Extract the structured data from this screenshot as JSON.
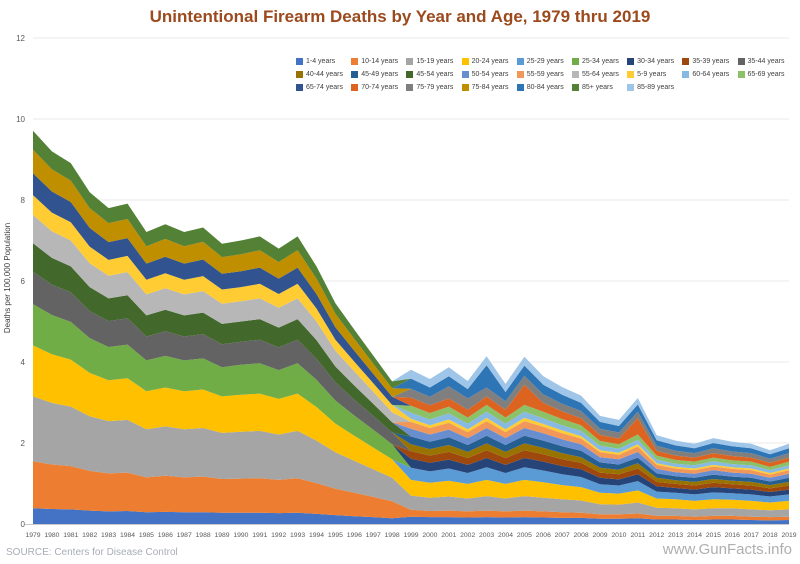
{
  "source": "SOURCE: Centers for Disease Control",
  "watermark": "www.GunFacts.info",
  "chart_data": {
    "type": "area",
    "stacked": true,
    "title": "Unintentional Firearm Deaths by Year and Age, 1979 thru 2019",
    "xlabel": "",
    "ylabel": "Deaths per 100,000 Population",
    "ylim": [
      0,
      12
    ],
    "yticks": [
      0,
      2,
      4,
      6,
      8,
      10,
      12
    ],
    "grid": true,
    "legend_position": "top-right",
    "title_color": "#9C4A1D",
    "x": [
      1979,
      1980,
      1981,
      1982,
      1983,
      1984,
      1985,
      1986,
      1987,
      1988,
      1989,
      1990,
      1991,
      1992,
      1993,
      1994,
      1995,
      1996,
      1997,
      1998,
      1999,
      2000,
      2001,
      2002,
      2003,
      2004,
      2005,
      2006,
      2007,
      2008,
      2009,
      2010,
      2011,
      2012,
      2013,
      2014,
      2015,
      2016,
      2017,
      2018,
      2019
    ],
    "series": [
      {
        "name": "1-4 years",
        "color": "#4472C4",
        "values": [
          0.39,
          0.37,
          0.36,
          0.33,
          0.31,
          0.32,
          0.29,
          0.3,
          0.29,
          0.29,
          0.28,
          0.28,
          0.28,
          0.27,
          0.28,
          0.25,
          0.22,
          0.19,
          0.17,
          0.14,
          0.18,
          0.17,
          0.17,
          0.16,
          0.17,
          0.16,
          0.17,
          0.16,
          0.15,
          0.15,
          0.13,
          0.13,
          0.14,
          0.11,
          0.11,
          0.1,
          0.11,
          0.11,
          0.1,
          0.09,
          0.1
        ]
      },
      {
        "name": "10-14 years",
        "color": "#ED7D31",
        "values": [
          1.16,
          1.1,
          1.07,
          0.98,
          0.94,
          0.95,
          0.86,
          0.89,
          0.86,
          0.88,
          0.83,
          0.84,
          0.85,
          0.82,
          0.85,
          0.76,
          0.65,
          0.58,
          0.5,
          0.42,
          0.17,
          0.15,
          0.16,
          0.15,
          0.16,
          0.15,
          0.16,
          0.15,
          0.14,
          0.13,
          0.11,
          0.11,
          0.12,
          0.09,
          0.09,
          0.08,
          0.09,
          0.09,
          0.08,
          0.08,
          0.08
        ]
      },
      {
        "name": "15-19 years",
        "color": "#A5A5A5",
        "values": [
          1.6,
          1.52,
          1.47,
          1.35,
          1.29,
          1.3,
          1.19,
          1.22,
          1.19,
          1.2,
          1.14,
          1.16,
          1.17,
          1.12,
          1.17,
          1.05,
          0.9,
          0.79,
          0.68,
          0.58,
          0.35,
          0.33,
          0.35,
          0.32,
          0.36,
          0.32,
          0.36,
          0.34,
          0.32,
          0.3,
          0.25,
          0.24,
          0.27,
          0.2,
          0.19,
          0.18,
          0.19,
          0.19,
          0.18,
          0.17,
          0.18
        ]
      },
      {
        "name": "20-24 years",
        "color": "#FFC000",
        "values": [
          1.26,
          1.2,
          1.16,
          1.07,
          1.01,
          1.03,
          0.94,
          0.96,
          0.94,
          0.95,
          0.9,
          0.91,
          0.92,
          0.88,
          0.92,
          0.83,
          0.71,
          0.62,
          0.54,
          0.46,
          0.39,
          0.37,
          0.39,
          0.36,
          0.4,
          0.36,
          0.4,
          0.38,
          0.35,
          0.33,
          0.28,
          0.27,
          0.3,
          0.23,
          0.22,
          0.21,
          0.22,
          0.21,
          0.21,
          0.19,
          0.21
        ]
      },
      {
        "name": "25-29 years",
        "color": "#5B9BD5",
        "values": [
          0,
          0,
          0,
          0,
          0,
          0,
          0,
          0,
          0,
          0,
          0,
          0,
          0,
          0,
          0,
          0,
          0,
          0,
          0,
          0,
          0.3,
          0.28,
          0.3,
          0.27,
          0.31,
          0.27,
          0.31,
          0.29,
          0.27,
          0.25,
          0.21,
          0.2,
          0.23,
          0.17,
          0.16,
          0.16,
          0.17,
          0.16,
          0.16,
          0.15,
          0.16
        ]
      },
      {
        "name": "25-34 years",
        "color": "#70AD47",
        "values": [
          1.02,
          0.97,
          0.93,
          0.86,
          0.82,
          0.83,
          0.76,
          0.78,
          0.76,
          0.77,
          0.72,
          0.74,
          0.75,
          0.71,
          0.75,
          0.67,
          0.57,
          0.5,
          0.44,
          0.37,
          0,
          0,
          0,
          0,
          0,
          0,
          0,
          0,
          0,
          0,
          0,
          0,
          0,
          0,
          0,
          0,
          0,
          0,
          0,
          0,
          0
        ]
      },
      {
        "name": "30-34 years",
        "color": "#264478",
        "values": [
          0,
          0,
          0,
          0,
          0,
          0,
          0,
          0,
          0,
          0,
          0,
          0,
          0,
          0,
          0,
          0,
          0,
          0,
          0,
          0,
          0.22,
          0.21,
          0.22,
          0.2,
          0.23,
          0.2,
          0.23,
          0.22,
          0.2,
          0.19,
          0.16,
          0.15,
          0.17,
          0.13,
          0.12,
          0.12,
          0.13,
          0.12,
          0.12,
          0.11,
          0.12
        ]
      },
      {
        "name": "35-39 years",
        "color": "#9E480E",
        "values": [
          0,
          0,
          0,
          0,
          0,
          0,
          0,
          0,
          0,
          0,
          0,
          0,
          0,
          0,
          0,
          0,
          0,
          0,
          0,
          0,
          0.19,
          0.18,
          0.19,
          0.17,
          0.19,
          0.17,
          0.19,
          0.18,
          0.17,
          0.16,
          0.13,
          0.13,
          0.14,
          0.11,
          0.1,
          0.1,
          0.11,
          0.1,
          0.1,
          0.09,
          0.1
        ]
      },
      {
        "name": "35-44 years",
        "color": "#636363",
        "values": [
          0.8,
          0.75,
          0.73,
          0.67,
          0.64,
          0.65,
          0.59,
          0.61,
          0.59,
          0.6,
          0.57,
          0.57,
          0.58,
          0.56,
          0.58,
          0.52,
          0.45,
          0.39,
          0.34,
          0.29,
          0,
          0,
          0,
          0,
          0,
          0,
          0,
          0,
          0,
          0,
          0,
          0,
          0,
          0,
          0,
          0,
          0,
          0,
          0,
          0,
          0
        ]
      },
      {
        "name": "40-44 years",
        "color": "#997300",
        "values": [
          0,
          0,
          0,
          0,
          0,
          0,
          0,
          0,
          0,
          0,
          0,
          0,
          0,
          0,
          0,
          0,
          0,
          0,
          0,
          0,
          0.17,
          0.16,
          0.17,
          0.15,
          0.17,
          0.15,
          0.17,
          0.16,
          0.15,
          0.14,
          0.12,
          0.11,
          0.13,
          0.1,
          0.09,
          0.09,
          0.09,
          0.09,
          0.09,
          0.08,
          0.09
        ]
      },
      {
        "name": "45-49 years",
        "color": "#255E91",
        "values": [
          0,
          0,
          0,
          0,
          0,
          0,
          0,
          0,
          0,
          0,
          0,
          0,
          0,
          0,
          0,
          0,
          0,
          0,
          0,
          0,
          0.19,
          0.18,
          0.19,
          0.17,
          0.19,
          0.17,
          0.19,
          0.18,
          0.17,
          0.16,
          0.13,
          0.13,
          0.14,
          0.11,
          0.1,
          0.1,
          0.11,
          0.1,
          0.1,
          0.09,
          0.1
        ]
      },
      {
        "name": "45-54 years",
        "color": "#43682B",
        "values": [
          0.7,
          0.66,
          0.64,
          0.59,
          0.56,
          0.57,
          0.52,
          0.53,
          0.52,
          0.53,
          0.5,
          0.5,
          0.51,
          0.49,
          0.51,
          0.46,
          0.39,
          0.35,
          0.3,
          0.25,
          0,
          0,
          0,
          0,
          0,
          0,
          0,
          0,
          0,
          0,
          0,
          0,
          0,
          0,
          0,
          0,
          0,
          0,
          0,
          0,
          0
        ]
      },
      {
        "name": "50-54 years",
        "color": "#698ED0",
        "values": [
          0,
          0,
          0,
          0,
          0,
          0,
          0,
          0,
          0,
          0,
          0,
          0,
          0,
          0,
          0,
          0,
          0,
          0,
          0,
          0,
          0.19,
          0.18,
          0.19,
          0.17,
          0.19,
          0.17,
          0.19,
          0.18,
          0.17,
          0.16,
          0.13,
          0.13,
          0.14,
          0.11,
          0.1,
          0.1,
          0.11,
          0.1,
          0.1,
          0.09,
          0.1
        ]
      },
      {
        "name": "55-59 years",
        "color": "#F1975A",
        "values": [
          0,
          0,
          0,
          0,
          0,
          0,
          0,
          0,
          0,
          0,
          0,
          0,
          0,
          0,
          0,
          0,
          0,
          0,
          0,
          0,
          0.17,
          0.16,
          0.17,
          0.15,
          0.17,
          0.15,
          0.17,
          0.16,
          0.15,
          0.14,
          0.12,
          0.11,
          0.13,
          0.1,
          0.09,
          0.09,
          0.09,
          0.09,
          0.09,
          0.08,
          0.09
        ]
      },
      {
        "name": "55-64 years",
        "color": "#B7B7B7",
        "values": [
          0.7,
          0.66,
          0.64,
          0.59,
          0.56,
          0.57,
          0.52,
          0.53,
          0.52,
          0.53,
          0.5,
          0.5,
          0.51,
          0.49,
          0.51,
          0.46,
          0.39,
          0.35,
          0.3,
          0.25,
          0,
          0,
          0,
          0,
          0,
          0,
          0,
          0,
          0,
          0,
          0,
          0,
          0,
          0,
          0,
          0,
          0,
          0,
          0,
          0,
          0
        ]
      },
      {
        "name": "5-9 years",
        "color": "#FFCD33",
        "values": [
          0.49,
          0.46,
          0.45,
          0.41,
          0.39,
          0.4,
          0.36,
          0.37,
          0.36,
          0.37,
          0.35,
          0.35,
          0.36,
          0.34,
          0.36,
          0.32,
          0.27,
          0.24,
          0.21,
          0.18,
          0.08,
          0.07,
          0.08,
          0.07,
          0.08,
          0.07,
          0.08,
          0.07,
          0.07,
          0.06,
          0.05,
          0.05,
          0.06,
          0.04,
          0.04,
          0.04,
          0.04,
          0.04,
          0.04,
          0.04,
          0.04
        ]
      },
      {
        "name": "60-64 years",
        "color": "#88B9E3",
        "values": [
          0,
          0,
          0,
          0,
          0,
          0,
          0,
          0,
          0,
          0,
          0,
          0,
          0,
          0,
          0,
          0,
          0,
          0,
          0,
          0,
          0.15,
          0.14,
          0.15,
          0.14,
          0.15,
          0.14,
          0.15,
          0.14,
          0.13,
          0.13,
          0.11,
          0.1,
          0.11,
          0.09,
          0.08,
          0.08,
          0.09,
          0.08,
          0.08,
          0.07,
          0.08
        ]
      },
      {
        "name": "65-69 years",
        "color": "#8CC168",
        "values": [
          0,
          0,
          0,
          0,
          0,
          0,
          0,
          0,
          0,
          0,
          0,
          0,
          0,
          0,
          0,
          0,
          0,
          0,
          0,
          0,
          0.17,
          0.16,
          0.17,
          0.15,
          0.17,
          0.15,
          0.17,
          0.16,
          0.15,
          0.14,
          0.12,
          0.11,
          0.13,
          0.1,
          0.09,
          0.09,
          0.09,
          0.09,
          0.09,
          0.08,
          0.09
        ]
      },
      {
        "name": "65-74 years",
        "color": "#31538F",
        "values": [
          0.54,
          0.52,
          0.5,
          0.46,
          0.44,
          0.44,
          0.4,
          0.41,
          0.4,
          0.41,
          0.39,
          0.39,
          0.4,
          0.38,
          0.4,
          0.36,
          0.31,
          0.27,
          0.23,
          0.2,
          0,
          0,
          0,
          0,
          0,
          0,
          0,
          0,
          0,
          0,
          0,
          0,
          0,
          0,
          0,
          0,
          0,
          0,
          0,
          0,
          0
        ]
      },
      {
        "name": "70-74 years",
        "color": "#DD6420",
        "values": [
          0,
          0,
          0,
          0,
          0,
          0,
          0,
          0,
          0,
          0,
          0,
          0,
          0,
          0,
          0,
          0,
          0,
          0,
          0,
          0,
          0.2,
          0.19,
          0.2,
          0.19,
          0.21,
          0.19,
          0.5,
          0.22,
          0.19,
          0.17,
          0.15,
          0.14,
          0.4,
          0.12,
          0.11,
          0.1,
          0.11,
          0.11,
          0.1,
          0.1,
          0.1
        ]
      },
      {
        "name": "75-79 years",
        "color": "#7F7F7F",
        "values": [
          0,
          0,
          0,
          0,
          0,
          0,
          0,
          0,
          0,
          0,
          0,
          0,
          0,
          0,
          0,
          0,
          0,
          0,
          0,
          0,
          0.22,
          0.21,
          0.3,
          0.28,
          0.22,
          0.21,
          0.22,
          0.21,
          0.19,
          0.18,
          0.15,
          0.15,
          0.16,
          0.12,
          0.12,
          0.11,
          0.12,
          0.11,
          0.11,
          0.1,
          0.11
        ]
      },
      {
        "name": "75-84 years",
        "color": "#BF8F00",
        "values": [
          0.58,
          0.55,
          0.53,
          0.49,
          0.47,
          0.47,
          0.43,
          0.44,
          0.43,
          0.44,
          0.41,
          0.42,
          0.43,
          0.41,
          0.43,
          0.38,
          0.33,
          0.29,
          0.25,
          0.21,
          0,
          0,
          0,
          0,
          0,
          0,
          0,
          0,
          0,
          0,
          0,
          0,
          0,
          0,
          0,
          0,
          0,
          0,
          0,
          0,
          0
        ]
      },
      {
        "name": "80-84 years",
        "color": "#2E75B6",
        "values": [
          0,
          0,
          0,
          0,
          0,
          0,
          0,
          0,
          0,
          0,
          0,
          0,
          0,
          0,
          0,
          0,
          0,
          0,
          0,
          0,
          0.25,
          0.23,
          0.25,
          0.23,
          0.55,
          0.23,
          0.25,
          0.24,
          0.22,
          0.2,
          0.17,
          0.16,
          0.18,
          0.14,
          0.13,
          0.12,
          0.13,
          0.13,
          0.12,
          0.11,
          0.12
        ]
      },
      {
        "name": "85+ years",
        "color": "#538135",
        "values": [
          0.47,
          0.44,
          0.43,
          0.39,
          0.37,
          0.38,
          0.35,
          0.36,
          0.35,
          0.35,
          0.33,
          0.34,
          0.34,
          0.33,
          0.34,
          0.3,
          0.26,
          0.23,
          0.2,
          0.17,
          0,
          0,
          0,
          0,
          0,
          0,
          0,
          0,
          0,
          0,
          0,
          0,
          0,
          0,
          0,
          0,
          0,
          0,
          0,
          0,
          0
        ]
      },
      {
        "name": "85-89 years",
        "color": "#9FC5E8",
        "values": [
          0,
          0,
          0,
          0,
          0,
          0,
          0,
          0,
          0,
          0,
          0,
          0,
          0,
          0,
          0,
          0,
          0,
          0,
          0,
          0,
          0.22,
          0.21,
          0.22,
          0.2,
          0.22,
          0.2,
          0.22,
          0.21,
          0.19,
          0.18,
          0.15,
          0.15,
          0.16,
          0.12,
          0.12,
          0.11,
          0.12,
          0.11,
          0.11,
          0.1,
          0.11
        ]
      }
    ]
  }
}
